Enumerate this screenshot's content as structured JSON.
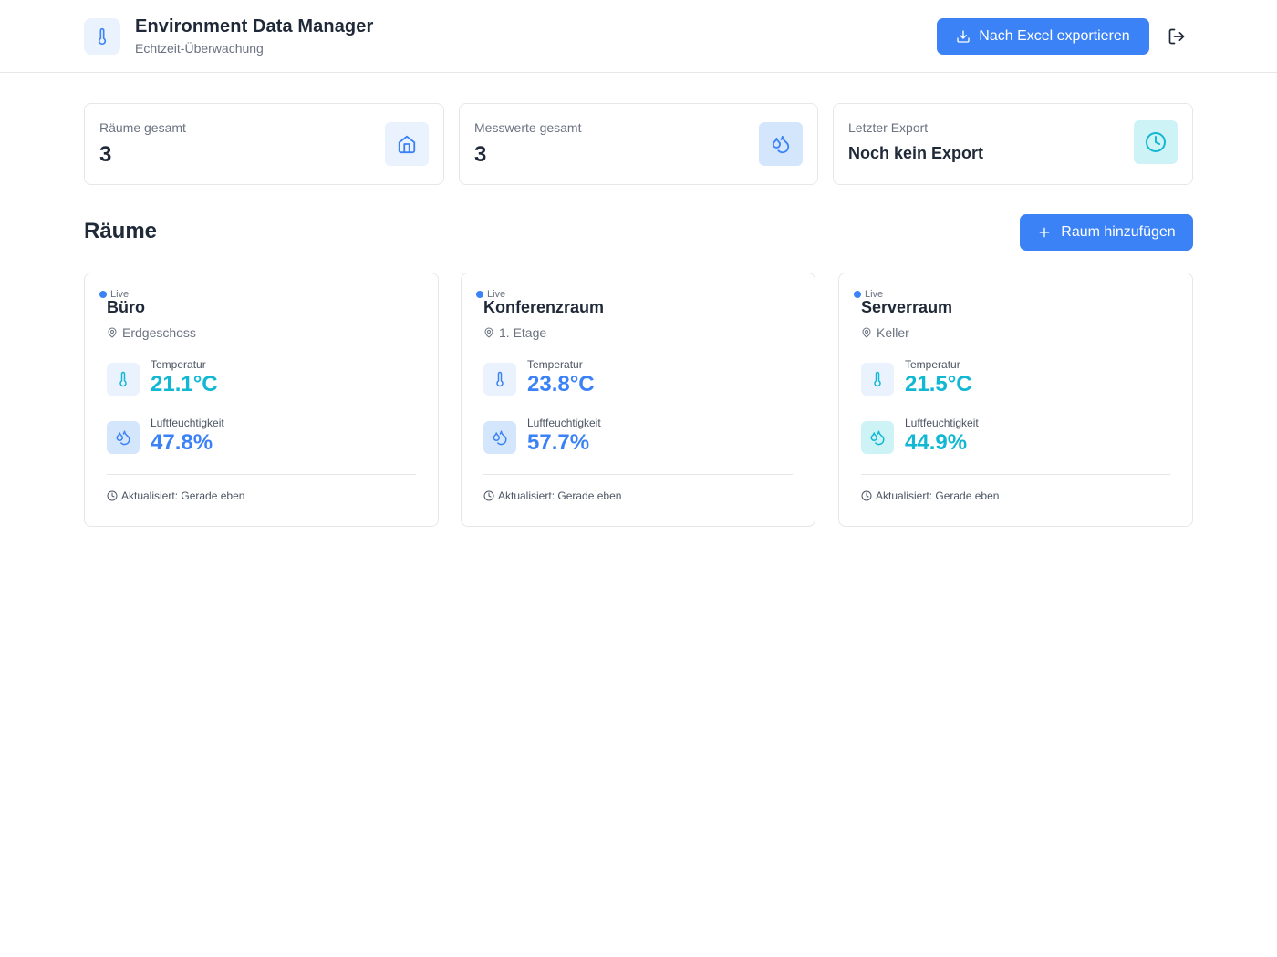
{
  "header": {
    "title": "Environment Data Manager",
    "subtitle": "Echtzeit-Überwachung",
    "export_label": "Nach Excel exportieren"
  },
  "stats": [
    {
      "label": "Räume gesamt",
      "value": "3",
      "icon": "home-icon"
    },
    {
      "label": "Messwerte gesamt",
      "value": "3",
      "icon": "droplets-icon"
    },
    {
      "label": "Letzter Export",
      "value": "Noch kein Export",
      "icon": "clock-icon"
    }
  ],
  "section": {
    "title": "Räume",
    "add_label": "Raum hinzufügen"
  },
  "rooms": [
    {
      "live": "Live",
      "name": "Büro",
      "location": "Erdgeschoss",
      "temp_label": "Temperatur",
      "temp": "21.1°C",
      "hum_label": "Luftfeuchtigkeit",
      "hum": "47.8%",
      "updated": "Aktualisiert: Gerade eben"
    },
    {
      "live": "Live",
      "name": "Konferenzraum",
      "location": "1. Etage",
      "temp_label": "Temperatur",
      "temp": "23.8°C",
      "hum_label": "Luftfeuchtigkeit",
      "hum": "57.7%",
      "updated": "Aktualisiert: Gerade eben"
    },
    {
      "live": "Live",
      "name": "Serverraum",
      "location": "Keller",
      "temp_label": "Temperatur",
      "temp": "21.5°C",
      "hum_label": "Luftfeuchtigkeit",
      "hum": "44.9%",
      "updated": "Aktualisiert: Gerade eben"
    }
  ],
  "colors": {
    "accent": "#3b82f6",
    "temperature": "#12b8d3",
    "humidity": "#3b82f6"
  }
}
